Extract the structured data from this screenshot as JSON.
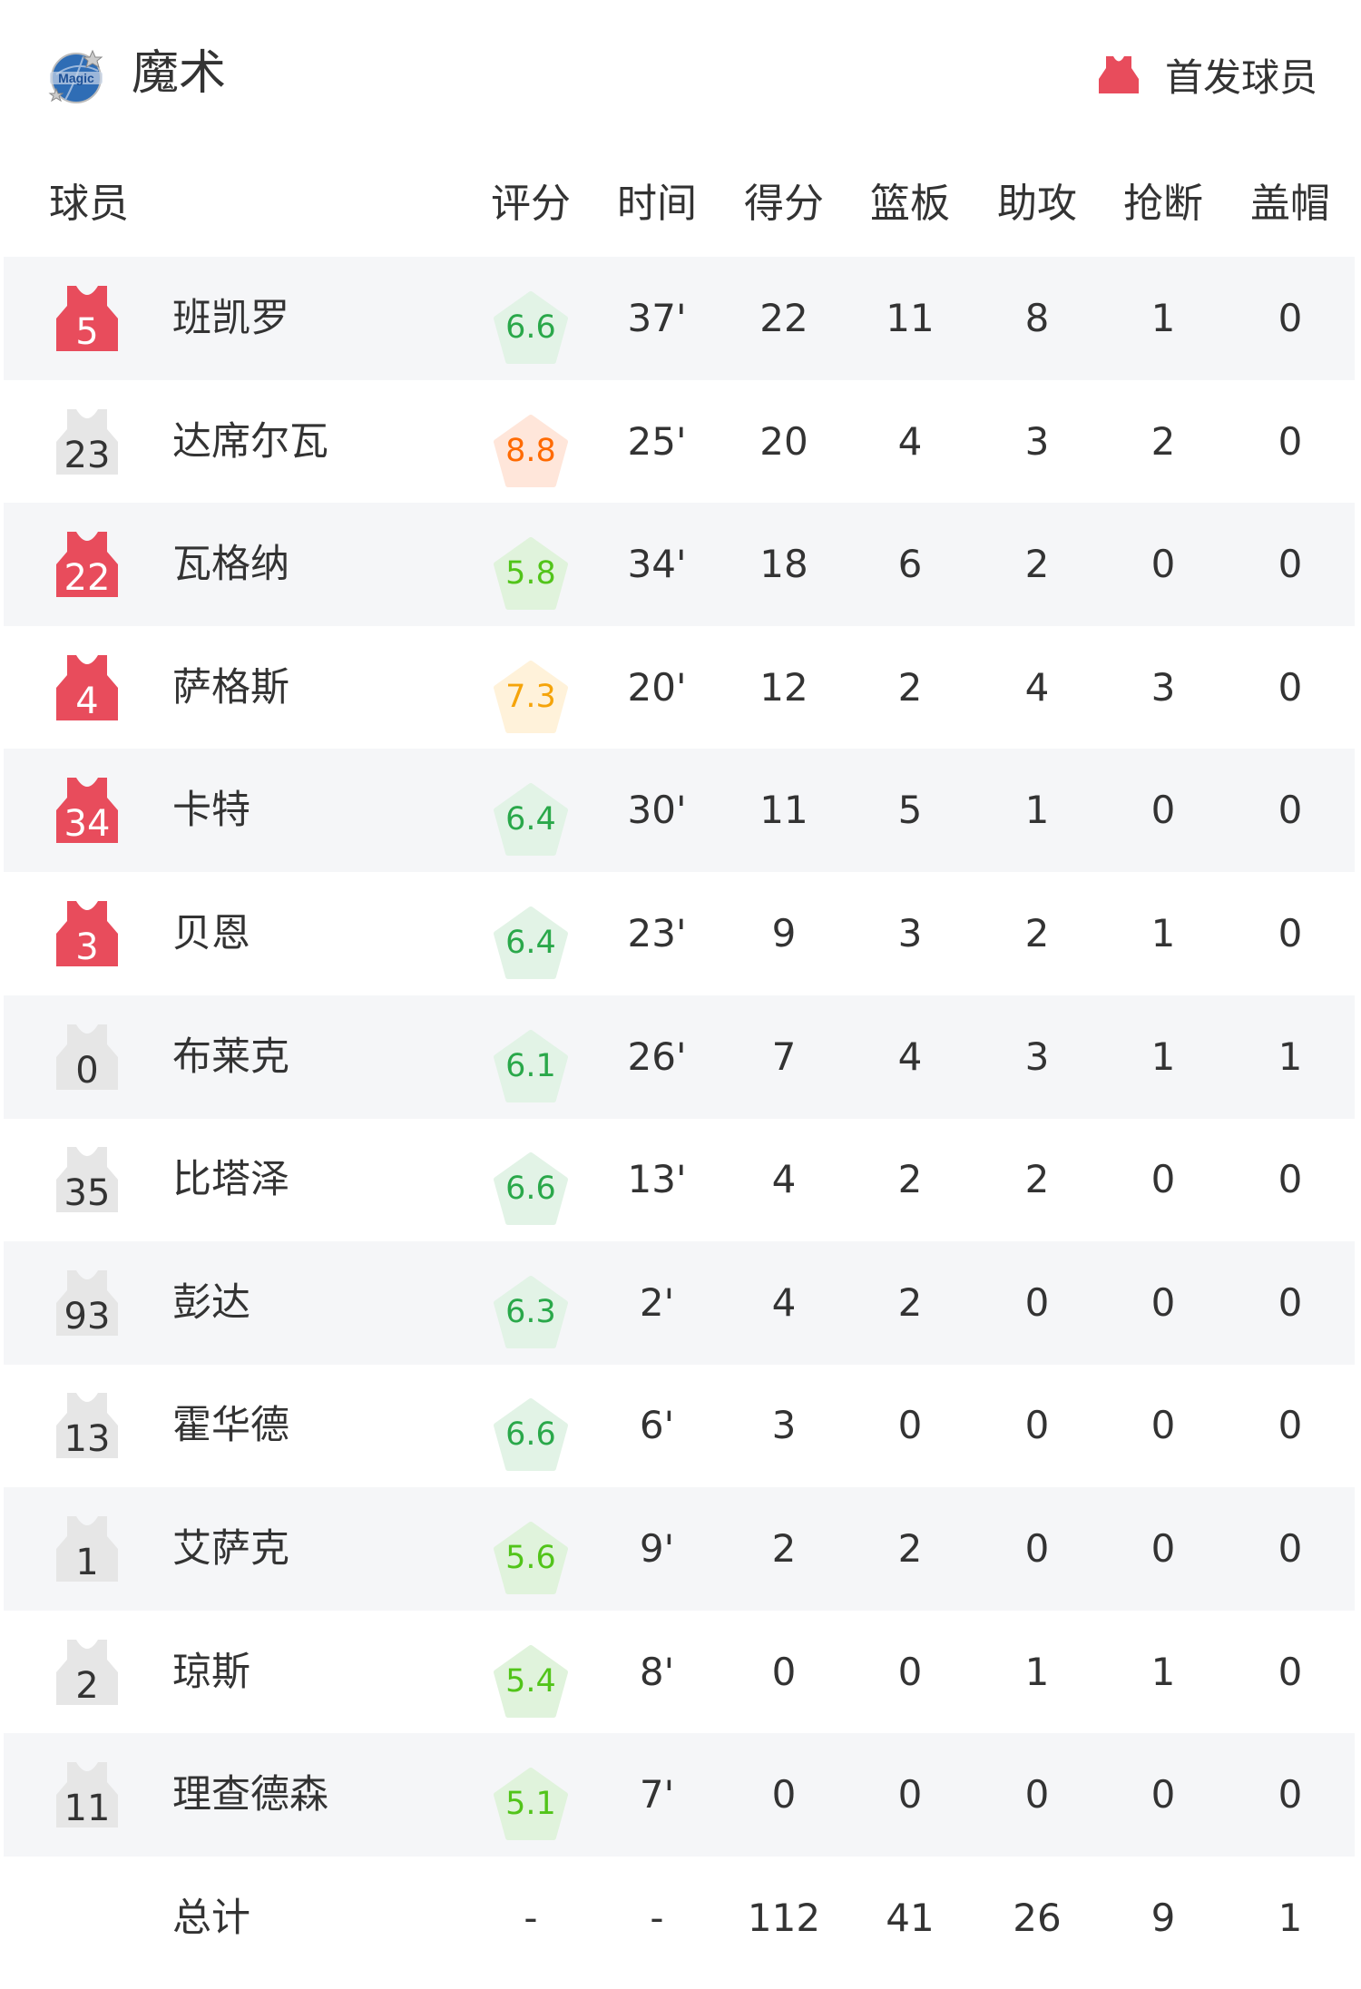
{
  "header": {
    "team_name": "魔术",
    "team_logo_text": "Magic",
    "legend_label": "首发球员",
    "legend_icon": "jersey-icon"
  },
  "colors": {
    "starter_jersey": "#e84c5c",
    "bench_jersey": "#e6e6e6",
    "row_alt": "#f5f6f8",
    "rating_green_text": "#2aa84a",
    "rating_green_bg": "#e2f3e6",
    "rating_lightgreen_text": "#52c41a",
    "rating_lightgreen_bg": "#e0f3dc",
    "rating_orange_text": "#ff6a00",
    "rating_orange_bg": "#ffe6da",
    "rating_yellow_text": "#f5a40a",
    "rating_yellow_bg": "#fff2da"
  },
  "columns": [
    "球员",
    "评分",
    "时间",
    "得分",
    "篮板",
    "助攻",
    "抢断",
    "盖帽"
  ],
  "players": [
    {
      "number": "5",
      "name": "班凯罗",
      "starter": true,
      "rating": "6.6",
      "tier": "green",
      "time": "37'",
      "pts": "22",
      "reb": "11",
      "ast": "8",
      "stl": "1",
      "blk": "0"
    },
    {
      "number": "23",
      "name": "达席尔瓦",
      "starter": false,
      "rating": "8.8",
      "tier": "orange",
      "time": "25'",
      "pts": "20",
      "reb": "4",
      "ast": "3",
      "stl": "2",
      "blk": "0"
    },
    {
      "number": "22",
      "name": "瓦格纳",
      "starter": true,
      "rating": "5.8",
      "tier": "lightgreen",
      "time": "34'",
      "pts": "18",
      "reb": "6",
      "ast": "2",
      "stl": "0",
      "blk": "0"
    },
    {
      "number": "4",
      "name": "萨格斯",
      "starter": true,
      "rating": "7.3",
      "tier": "yellow",
      "time": "20'",
      "pts": "12",
      "reb": "2",
      "ast": "4",
      "stl": "3",
      "blk": "0"
    },
    {
      "number": "34",
      "name": "卡特",
      "starter": true,
      "rating": "6.4",
      "tier": "green",
      "time": "30'",
      "pts": "11",
      "reb": "5",
      "ast": "1",
      "stl": "0",
      "blk": "0"
    },
    {
      "number": "3",
      "name": "贝恩",
      "starter": true,
      "rating": "6.4",
      "tier": "green",
      "time": "23'",
      "pts": "9",
      "reb": "3",
      "ast": "2",
      "stl": "1",
      "blk": "0"
    },
    {
      "number": "0",
      "name": "布莱克",
      "starter": false,
      "rating": "6.1",
      "tier": "green",
      "time": "26'",
      "pts": "7",
      "reb": "4",
      "ast": "3",
      "stl": "1",
      "blk": "1"
    },
    {
      "number": "35",
      "name": "比塔泽",
      "starter": false,
      "rating": "6.6",
      "tier": "green",
      "time": "13'",
      "pts": "4",
      "reb": "2",
      "ast": "2",
      "stl": "0",
      "blk": "0"
    },
    {
      "number": "93",
      "name": "彭达",
      "starter": false,
      "rating": "6.3",
      "tier": "green",
      "time": "2'",
      "pts": "4",
      "reb": "2",
      "ast": "0",
      "stl": "0",
      "blk": "0"
    },
    {
      "number": "13",
      "name": "霍华德",
      "starter": false,
      "rating": "6.6",
      "tier": "green",
      "time": "6'",
      "pts": "3",
      "reb": "0",
      "ast": "0",
      "stl": "0",
      "blk": "0"
    },
    {
      "number": "1",
      "name": "艾萨克",
      "starter": false,
      "rating": "5.6",
      "tier": "lightgreen",
      "time": "9'",
      "pts": "2",
      "reb": "2",
      "ast": "0",
      "stl": "0",
      "blk": "0"
    },
    {
      "number": "2",
      "name": "琼斯",
      "starter": false,
      "rating": "5.4",
      "tier": "lightgreen",
      "time": "8'",
      "pts": "0",
      "reb": "0",
      "ast": "1",
      "stl": "1",
      "blk": "0"
    },
    {
      "number": "11",
      "name": "理查德森",
      "starter": false,
      "rating": "5.1",
      "tier": "lightgreen",
      "time": "7'",
      "pts": "0",
      "reb": "0",
      "ast": "0",
      "stl": "0",
      "blk": "0"
    }
  ],
  "totals": {
    "label": "总计",
    "rating": "-",
    "time": "-",
    "pts": "112",
    "reb": "41",
    "ast": "26",
    "stl": "9",
    "blk": "1"
  }
}
